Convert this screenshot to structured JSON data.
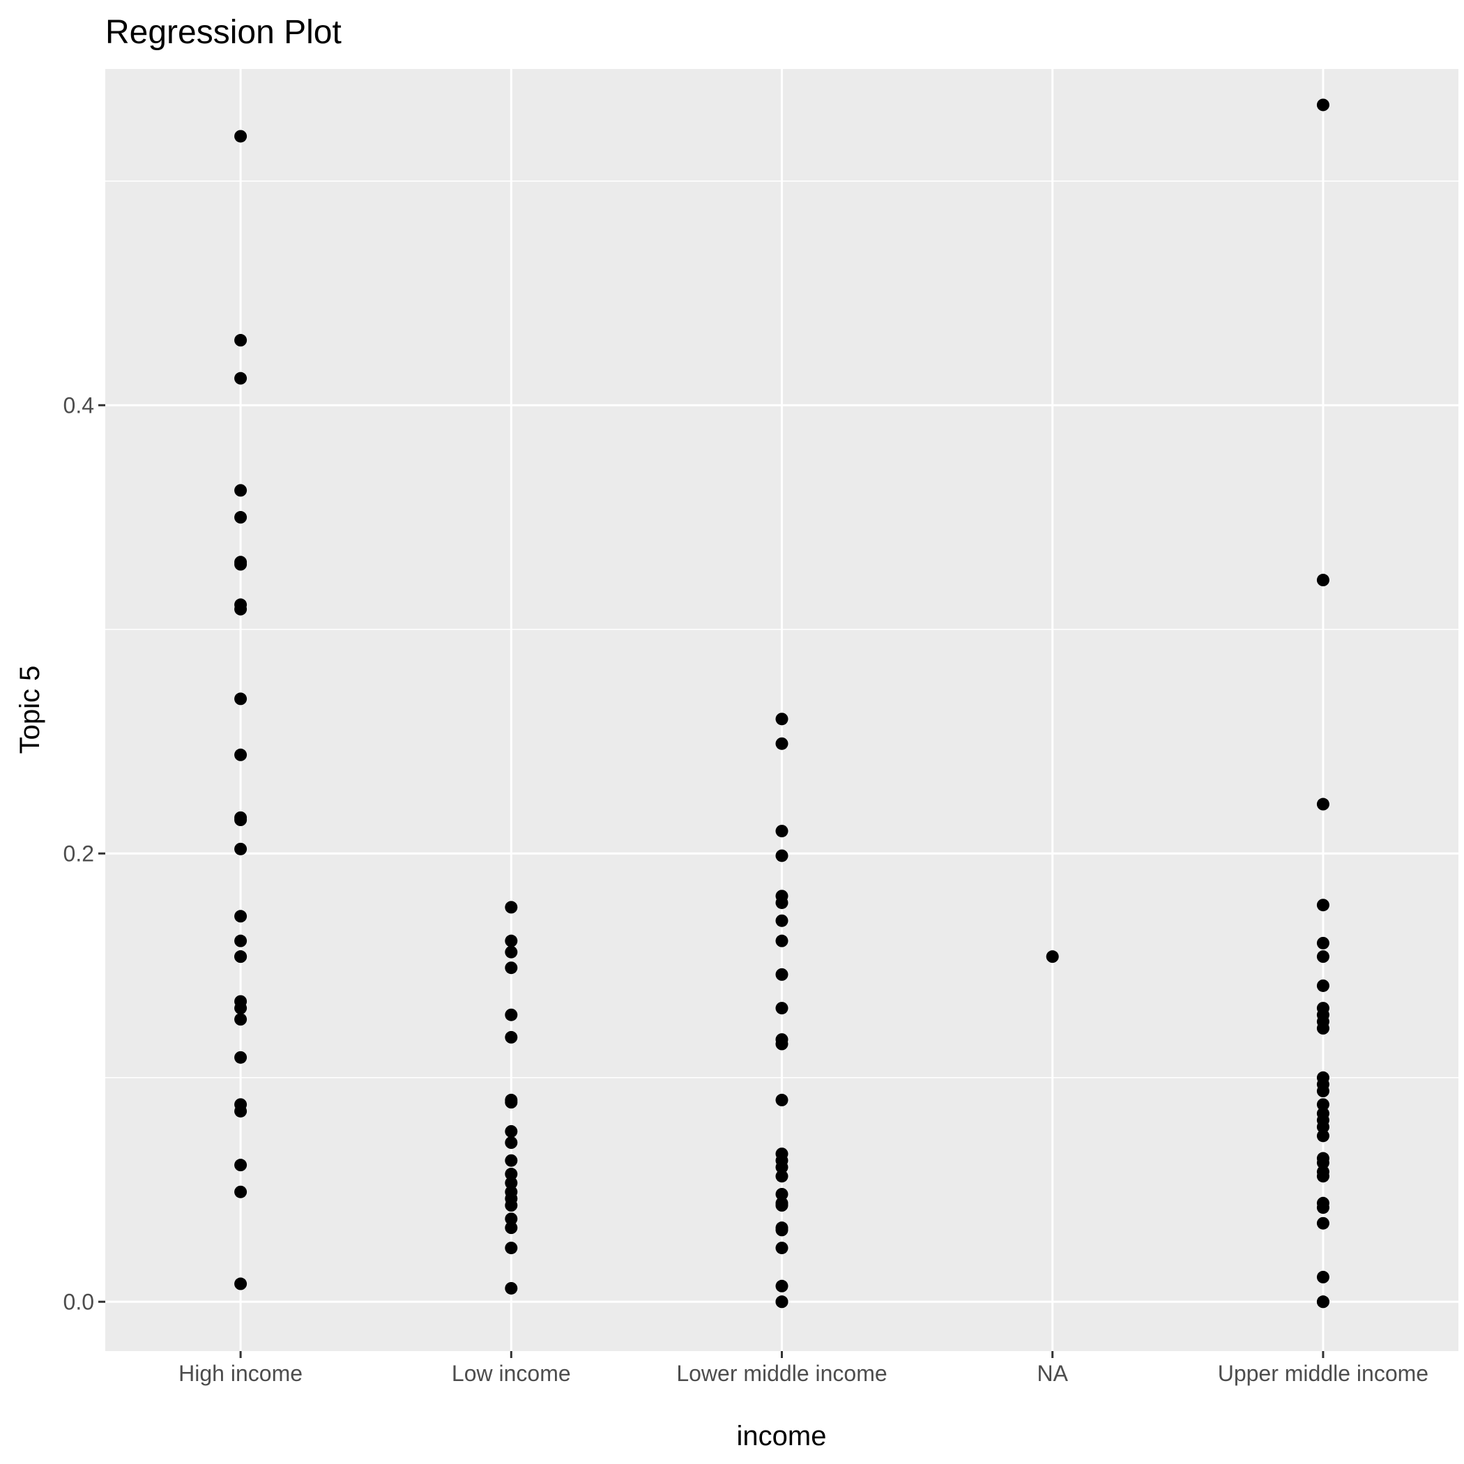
{
  "chart_data": {
    "type": "scatter",
    "title": "Regression Plot",
    "xlabel": "income",
    "ylabel": "Topic 5",
    "categories": [
      "High income",
      "Low income",
      "Lower middle income",
      "NA",
      "Upper middle income"
    ],
    "ylim": [
      -0.022,
      0.55
    ],
    "yticks": [
      0.0,
      0.2,
      0.4
    ],
    "ytick_labels": [
      "0.0",
      "0.2",
      "0.4"
    ],
    "grid": true,
    "colors": {
      "panel": "#ebebeb",
      "grid": "#ffffff",
      "point": "#000000",
      "tick_text": "#4d4d4d"
    },
    "points": [
      {
        "x": "High income",
        "y": [
          0.52,
          0.429,
          0.412,
          0.362,
          0.35,
          0.33,
          0.329,
          0.311,
          0.309,
          0.269,
          0.244,
          0.216,
          0.215,
          0.202,
          0.172,
          0.161,
          0.154,
          0.154,
          0.134,
          0.131,
          0.126,
          0.109,
          0.088,
          0.085,
          0.061,
          0.049,
          0.008
        ]
      },
      {
        "x": "Low income",
        "y": [
          0.176,
          0.161,
          0.156,
          0.149,
          0.128,
          0.118,
          0.09,
          0.089,
          0.076,
          0.071,
          0.063,
          0.057,
          0.053,
          0.049,
          0.046,
          0.043,
          0.037,
          0.033,
          0.024,
          0.006
        ]
      },
      {
        "x": "Lower middle income",
        "y": [
          0.26,
          0.249,
          0.21,
          0.199,
          0.181,
          0.178,
          0.17,
          0.161,
          0.146,
          0.131,
          0.117,
          0.115,
          0.09,
          0.066,
          0.063,
          0.06,
          0.056,
          0.048,
          0.044,
          0.043,
          0.033,
          0.032,
          0.024,
          0.007,
          0.0,
          0.0
        ]
      },
      {
        "x": "NA",
        "y": [
          0.154
        ]
      },
      {
        "x": "Upper middle income",
        "y": [
          0.534,
          0.322,
          0.222,
          0.177,
          0.16,
          0.154,
          0.141,
          0.131,
          0.128,
          0.125,
          0.122,
          0.1,
          0.097,
          0.094,
          0.088,
          0.084,
          0.081,
          0.078,
          0.074,
          0.064,
          0.062,
          0.058,
          0.056,
          0.044,
          0.042,
          0.035,
          0.011,
          0.0,
          0.0
        ]
      }
    ]
  }
}
